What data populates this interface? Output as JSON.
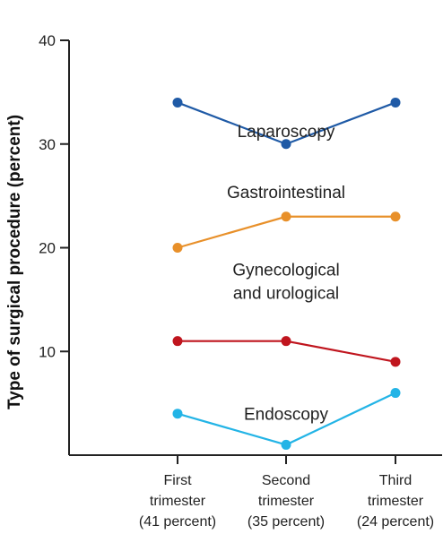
{
  "chart_data": {
    "type": "line",
    "ylabel": "Type of surgical procedure (percent)",
    "xlabel": "",
    "ylim": [
      0,
      40
    ],
    "yticks": [
      10,
      20,
      30,
      40
    ],
    "categories": [
      [
        "First",
        "trimester",
        "(41 percent)"
      ],
      [
        "Second",
        "trimester",
        "(35 percent)"
      ],
      [
        "Third",
        "trimester",
        "(24 percent)"
      ]
    ],
    "series": [
      {
        "name": "Laparoscopy",
        "label_lines": [
          "Laparoscopy"
        ],
        "color": "#1f5aa6",
        "values": [
          34,
          30,
          34
        ]
      },
      {
        "name": "Gastrointestinal",
        "label_lines": [
          "Gastrointestinal"
        ],
        "color": "#e8902a",
        "values": [
          20,
          23,
          23
        ]
      },
      {
        "name": "Gynecological and urological",
        "label_lines": [
          "Gynecological",
          "and urological"
        ],
        "color": "#c0151e",
        "values": [
          11,
          11,
          9
        ]
      },
      {
        "name": "Endoscopy",
        "label_lines": [
          "Endoscopy"
        ],
        "color": "#23b4e6",
        "values": [
          4,
          1,
          6
        ]
      }
    ],
    "grid": false,
    "legend": "inline labels"
  }
}
